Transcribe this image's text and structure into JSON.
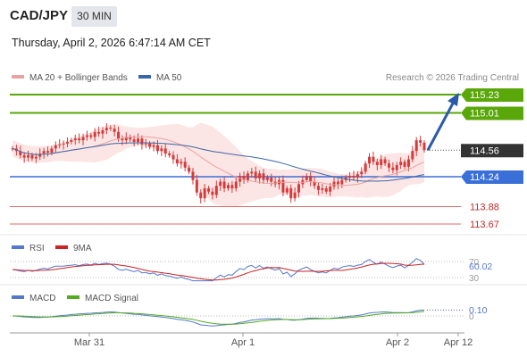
{
  "header": {
    "symbol": "CAD/JPY",
    "timeframe": "30 MIN",
    "datetime": "Thursday, April 2, 2026 6:47:14 AM CET"
  },
  "colors": {
    "candle": "#d63a3a",
    "bollinger_fill": "#fbdede",
    "ma20": "#e9a3a3",
    "ma50": "#3a67a6",
    "resistance": "#5aa70a",
    "pivot": "#3a6fd8",
    "support": "#e06a6a",
    "arrow": "#2a5aa8",
    "rsi": "#5577cc",
    "rsi_ma": "#cc2222",
    "macd": "#5577cc",
    "macd_signal": "#55aa22"
  },
  "chart_data": [
    {
      "type": "candlestick",
      "legend": [
        "MA 20 + Bollinger Bands",
        "MA 50"
      ],
      "credit": "Research © 2026 Trading Central",
      "x_ticks": [
        "Mar 31",
        "Apr 1",
        "Apr 2",
        "Apr 12"
      ],
      "y_range": [
        113.55,
        115.35
      ],
      "levels": [
        {
          "value": 115.23,
          "label": "115.23",
          "kind": "resistance"
        },
        {
          "value": 115.01,
          "label": "115.01",
          "kind": "resistance"
        },
        {
          "value": 114.56,
          "label": "114.56",
          "kind": "last"
        },
        {
          "value": 114.24,
          "label": "114.24",
          "kind": "pivot"
        },
        {
          "value": 113.88,
          "label": "113.88",
          "kind": "support"
        },
        {
          "value": 113.67,
          "label": "113.67",
          "kind": "support"
        }
      ],
      "close_series": [
        114.58,
        114.55,
        114.5,
        114.47,
        114.5,
        114.46,
        114.48,
        114.52,
        114.55,
        114.53,
        114.58,
        114.62,
        114.63,
        114.64,
        114.66,
        114.68,
        114.7,
        114.68,
        114.72,
        114.74,
        114.72,
        114.78,
        114.76,
        114.8,
        114.83,
        114.82,
        114.78,
        114.7,
        114.68,
        114.72,
        114.69,
        114.66,
        114.7,
        114.63,
        114.64,
        114.6,
        114.62,
        114.55,
        114.58,
        114.52,
        114.5,
        114.45,
        114.4,
        114.42,
        114.35,
        114.3,
        114.2,
        114.05,
        113.98,
        114.1,
        114.06,
        114.02,
        114.13,
        114.18,
        114.1,
        114.14,
        114.1,
        114.18,
        114.25,
        114.2,
        114.28,
        114.3,
        114.22,
        114.28,
        114.2,
        114.23,
        114.18,
        114.15,
        114.2,
        114.05,
        114.1,
        113.98,
        114.05,
        114.15,
        114.2,
        114.25,
        114.18,
        114.13,
        114.08,
        114.1,
        114.06,
        114.12,
        114.18,
        114.15,
        114.2,
        114.23,
        114.25,
        114.23,
        114.27,
        114.3,
        114.4,
        114.48,
        114.42,
        114.38,
        114.45,
        114.4,
        114.35,
        114.32,
        114.38,
        114.42,
        114.36,
        114.45,
        114.55,
        114.68,
        114.65,
        114.56
      ]
    },
    {
      "type": "line",
      "legend": [
        "RSI",
        "9MA"
      ],
      "value_label": "60.02",
      "levels": [
        "70",
        "30"
      ]
    },
    {
      "type": "line",
      "legend": [
        "MACD",
        "MACD Signal"
      ],
      "value_label": "0.10",
      "levels": [
        "0"
      ]
    }
  ]
}
